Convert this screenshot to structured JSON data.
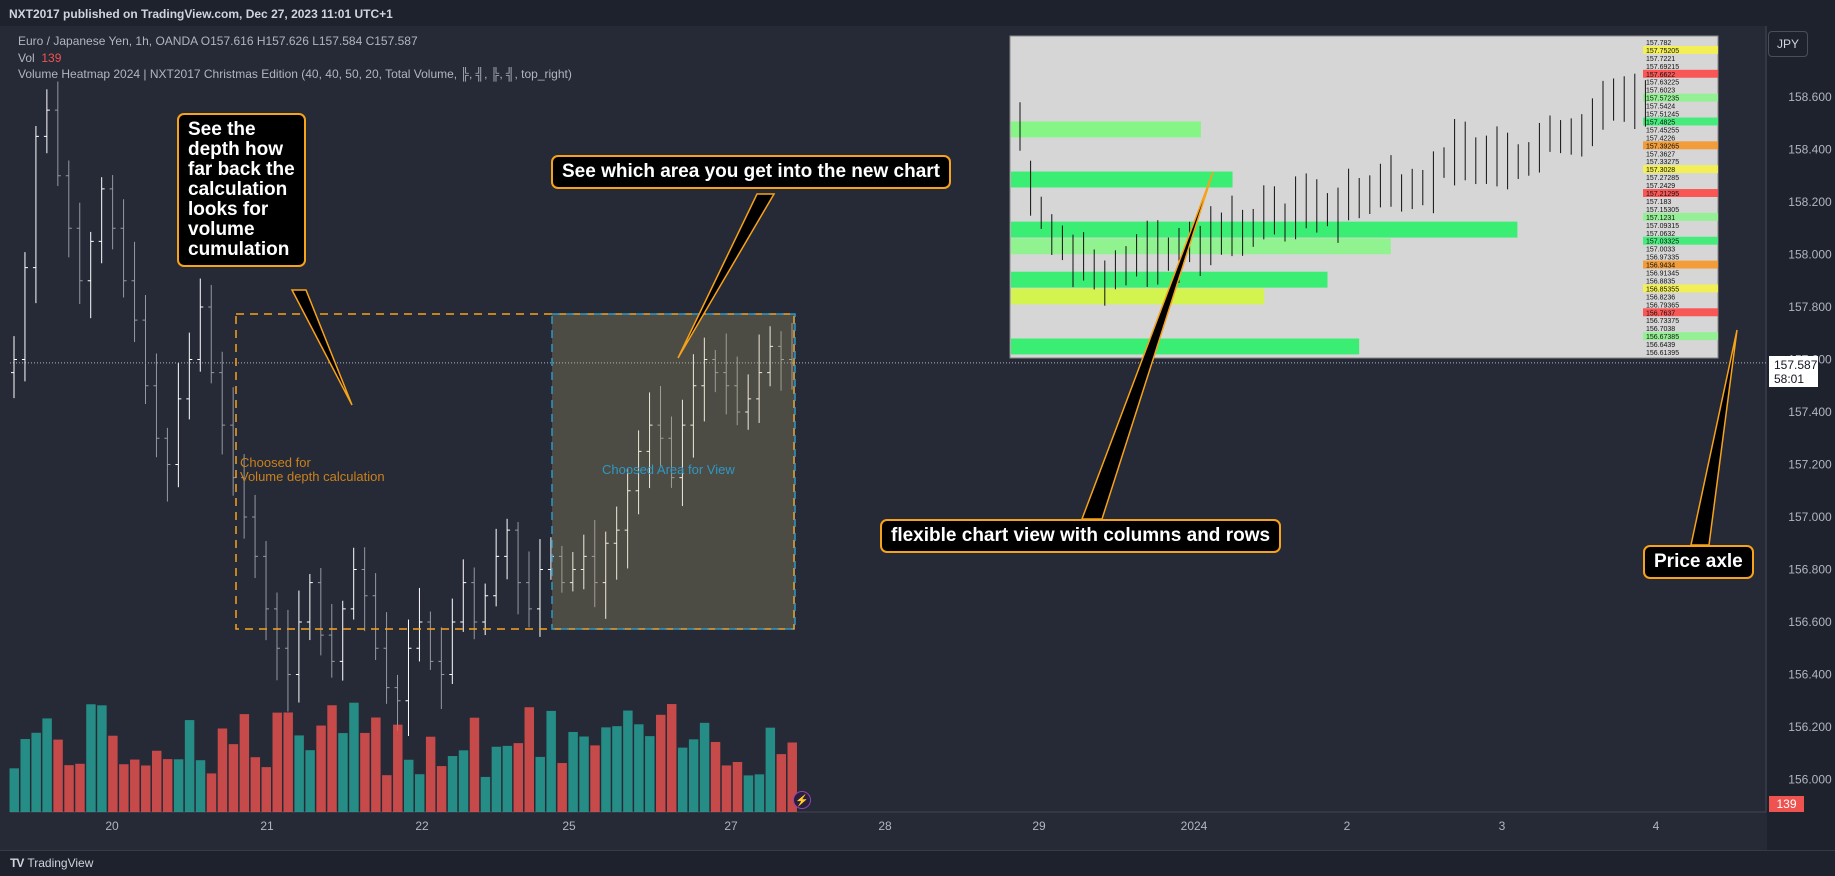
{
  "header": {
    "published": "NXT2017 published on TradingView.com, Dec 27, 2023 11:01 UTC+1"
  },
  "legend": {
    "symbol_line": "Euro / Japanese Yen, 1h, OANDA  O157.616  H157.626  L157.584  C157.587",
    "vol_label": "Vol",
    "vol_value": "139",
    "indicator_line": "Volume Heatmap 2024 | NXT2017 Christmas Edition (40, 40, 50, 20, Total Volume, ╠, ╣, ╠, ╣, top_right)"
  },
  "currency_button": "JPY",
  "last_price": {
    "price": "157.587",
    "countdown": "58:01"
  },
  "volume_badge": "139",
  "footer": {
    "brand": "TradingView"
  },
  "annotations": {
    "depth": "See the depth how far back the calculation looks for volume cumulation",
    "area": "See which area you get into the new chart",
    "flexible": "flexible chart view with columns and rows",
    "axle": "Price axle",
    "depth_box_label_1": "Choosed for",
    "depth_box_label_2": "Volume depth calculation",
    "view_box_label": "Choosed Area for View"
  },
  "colors": {
    "up": "#ffffff",
    "down": "#9598a1",
    "vol_up": "#26a69a",
    "vol_down": "#ef5350",
    "accent": "#f7a21b"
  },
  "chart_data": {
    "type": "candlestick",
    "symbol": "Euro / Japanese Yen",
    "interval": "1h",
    "y_axis_ticks": [
      158.6,
      158.4,
      158.2,
      158.0,
      157.8,
      157.6,
      157.4,
      157.2,
      157.0,
      156.8,
      156.6,
      156.4,
      156.2,
      156.0
    ],
    "x_axis_ticks": [
      "20",
      "21",
      "22",
      "25",
      "27",
      "28",
      "29",
      "2024",
      "2",
      "3",
      "4"
    ],
    "last_price": 157.587,
    "closes": [
      157.6,
      157.95,
      158.45,
      158.55,
      158.3,
      158.1,
      157.9,
      158.05,
      158.25,
      158.1,
      157.9,
      157.75,
      157.5,
      157.3,
      157.2,
      157.45,
      157.6,
      157.8,
      157.55,
      157.35,
      157.15,
      157.0,
      156.85,
      156.65,
      156.5,
      156.4,
      156.6,
      156.75,
      156.55,
      156.45,
      156.65,
      156.8,
      156.7,
      156.5,
      156.35,
      156.3,
      156.5,
      156.6,
      156.45,
      156.4,
      156.6,
      156.75,
      156.6,
      156.7,
      156.85,
      156.95,
      156.75,
      156.65,
      156.8,
      156.85,
      156.75,
      156.8,
      156.85,
      156.75,
      156.9,
      156.95,
      157.1,
      157.25,
      157.35,
      157.3,
      157.15,
      157.35,
      157.5,
      157.6,
      157.55,
      157.5,
      157.4,
      157.45,
      157.55,
      157.65,
      157.6,
      157.587
    ],
    "volume_last": 139,
    "heatmap_inset": {
      "price_labels": [
        157.782,
        157.75205,
        157.7221,
        157.69215,
        157.6622,
        157.63225,
        157.6023,
        157.57235,
        157.5424,
        157.51245,
        157.4825,
        157.45255,
        157.4226,
        157.39265,
        157.3627,
        157.33275,
        157.3028,
        157.27285,
        157.2429,
        157.21295,
        157.183,
        157.15305,
        157.1231,
        157.09315,
        157.0632,
        157.03325,
        157.0033,
        156.97335,
        156.9434,
        156.91345,
        156.8835,
        156.85355,
        156.8236,
        156.79365,
        156.7637,
        156.73375,
        156.7038,
        156.67385,
        156.6439,
        156.61395
      ]
    }
  }
}
